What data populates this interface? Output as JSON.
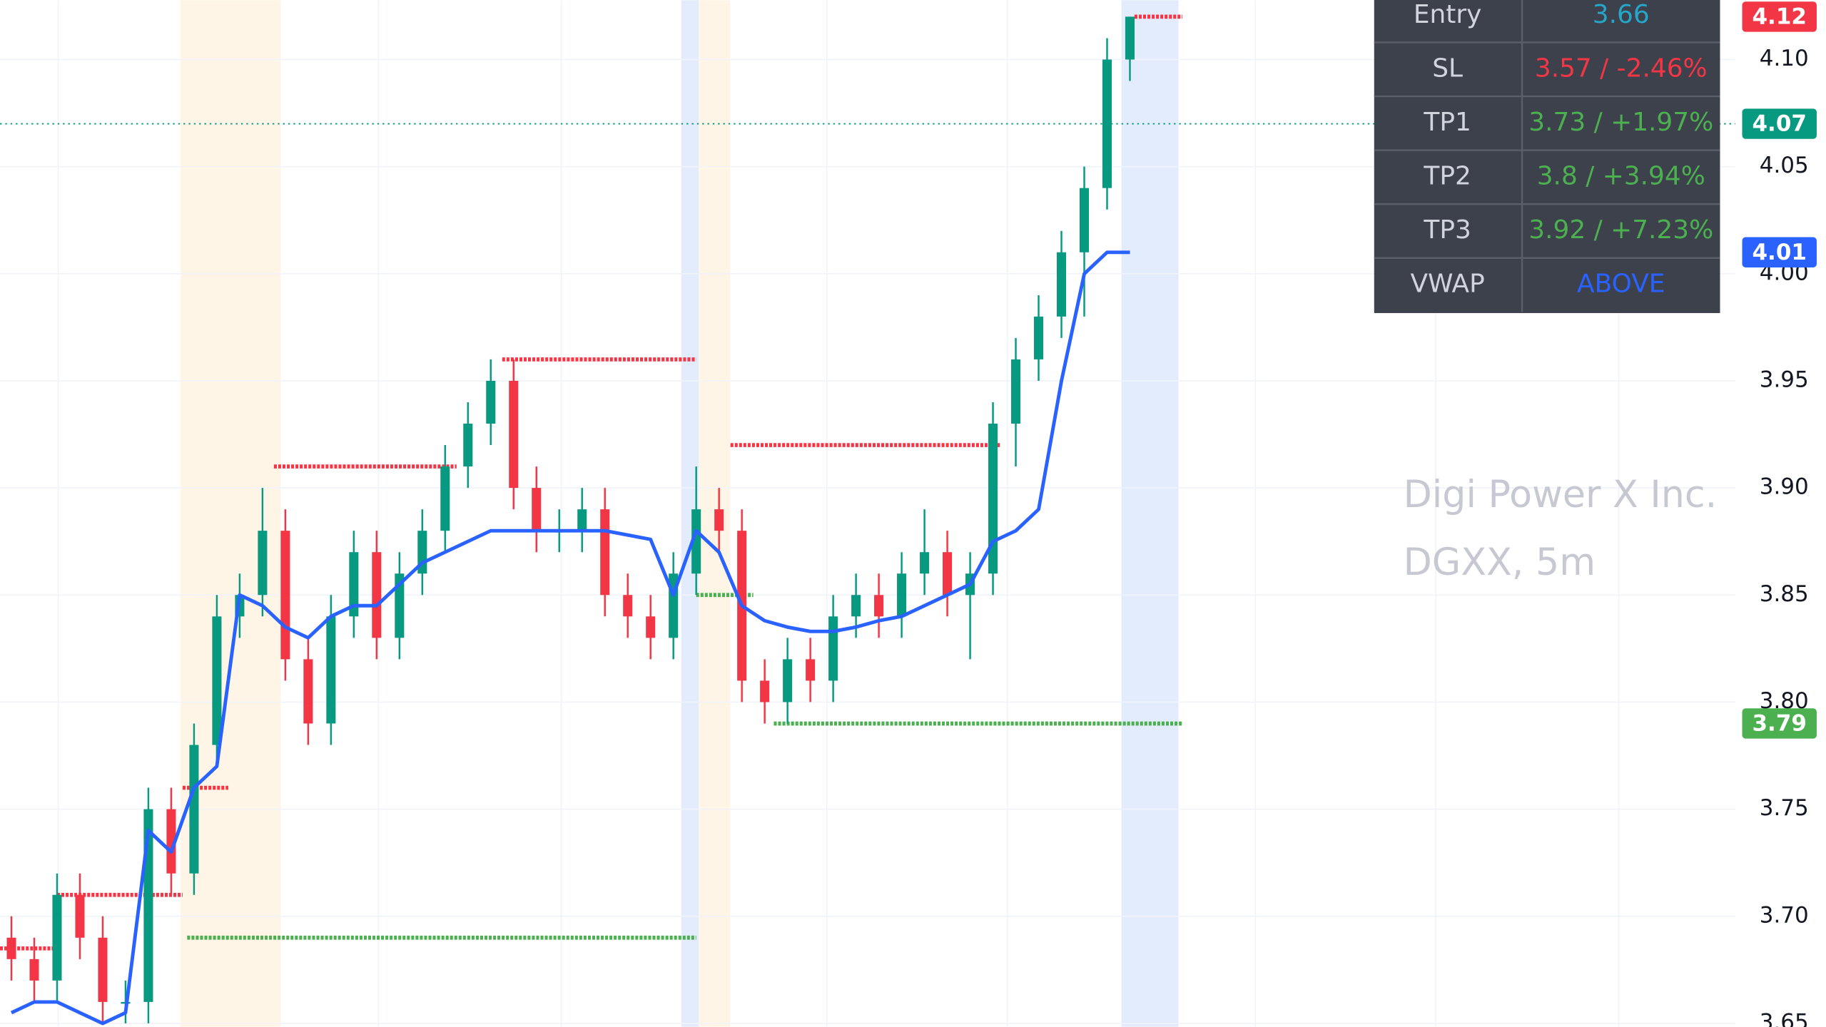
{
  "chart_data": {
    "type": "candlestick",
    "up_color": "#089981",
    "down_color": "#f23645",
    "ylim": [
      3.6484,
      4.1277
    ],
    "xlim": [
      -0.5,
      59.7
    ],
    "yticks": [
      {
        "value": 3.65,
        "label": "3.65"
      },
      {
        "value": 3.7,
        "label": "3.70"
      },
      {
        "value": 3.75,
        "label": "3.75"
      },
      {
        "value": 3.8,
        "label": "3.80"
      },
      {
        "value": 3.85,
        "label": "3.85"
      },
      {
        "value": 3.9,
        "label": "3.90"
      },
      {
        "value": 3.95,
        "label": "3.95"
      },
      {
        "value": 4.0,
        "label": "4.00"
      },
      {
        "value": 4.05,
        "label": "4.05"
      },
      {
        "value": 4.1,
        "label": "4.10"
      }
    ],
    "grid": true,
    "x": [
      0,
      1,
      2,
      3,
      4,
      5,
      6,
      7,
      8,
      9,
      10,
      11,
      12,
      13,
      14,
      15,
      16,
      17,
      18,
      19,
      20,
      21,
      22,
      23,
      24,
      25,
      26,
      27,
      28,
      29,
      30,
      31,
      32,
      33,
      34,
      35,
      36,
      37,
      38,
      39,
      40,
      41,
      42,
      43,
      44,
      45,
      46,
      47,
      48,
      49
    ],
    "open": [
      3.69,
      3.68,
      3.67,
      3.71,
      3.69,
      3.66,
      3.66,
      3.75,
      3.72,
      3.78,
      3.84,
      3.85,
      3.88,
      3.82,
      3.79,
      3.84,
      3.87,
      3.83,
      3.86,
      3.88,
      3.91,
      3.93,
      3.95,
      3.9,
      3.88,
      3.88,
      3.89,
      3.85,
      3.84,
      3.83,
      3.86,
      3.89,
      3.88,
      3.81,
      3.8,
      3.82,
      3.81,
      3.84,
      3.85,
      3.84,
      3.86,
      3.87,
      3.85,
      3.86,
      3.93,
      3.96,
      3.98,
      4.01,
      4.04,
      4.1
    ],
    "high": [
      3.7,
      3.69,
      3.72,
      3.72,
      3.7,
      3.67,
      3.76,
      3.76,
      3.79,
      3.85,
      3.86,
      3.9,
      3.89,
      3.83,
      3.85,
      3.88,
      3.88,
      3.87,
      3.89,
      3.92,
      3.94,
      3.96,
      3.96,
      3.91,
      3.89,
      3.9,
      3.9,
      3.86,
      3.85,
      3.87,
      3.91,
      3.9,
      3.89,
      3.82,
      3.83,
      3.83,
      3.85,
      3.86,
      3.86,
      3.87,
      3.89,
      3.88,
      3.87,
      3.94,
      3.97,
      3.99,
      4.02,
      4.05,
      4.11,
      4.12
    ],
    "low": [
      3.67,
      3.66,
      3.66,
      3.68,
      3.65,
      3.65,
      3.65,
      3.71,
      3.71,
      3.77,
      3.83,
      3.84,
      3.81,
      3.78,
      3.78,
      3.83,
      3.82,
      3.82,
      3.85,
      3.87,
      3.9,
      3.92,
      3.89,
      3.87,
      3.87,
      3.87,
      3.84,
      3.83,
      3.82,
      3.82,
      3.85,
      3.87,
      3.8,
      3.79,
      3.79,
      3.8,
      3.8,
      3.83,
      3.83,
      3.83,
      3.85,
      3.84,
      3.82,
      3.85,
      3.91,
      3.95,
      3.97,
      3.98,
      4.03,
      4.09
    ],
    "close": [
      3.68,
      3.67,
      3.71,
      3.69,
      3.66,
      3.66,
      3.75,
      3.72,
      3.78,
      3.84,
      3.85,
      3.88,
      3.82,
      3.79,
      3.84,
      3.87,
      3.83,
      3.86,
      3.88,
      3.91,
      3.93,
      3.95,
      3.9,
      3.88,
      3.88,
      3.89,
      3.85,
      3.84,
      3.83,
      3.86,
      3.89,
      3.88,
      3.81,
      3.8,
      3.82,
      3.81,
      3.84,
      3.85,
      3.84,
      3.86,
      3.87,
      3.85,
      3.86,
      3.93,
      3.96,
      3.98,
      4.01,
      4.04,
      4.1,
      4.12
    ],
    "vwap": {
      "color": "#2962ff",
      "values": [
        3.655,
        3.66,
        3.66,
        3.655,
        3.65,
        3.655,
        3.74,
        3.73,
        3.76,
        3.77,
        3.85,
        3.845,
        3.835,
        3.83,
        3.84,
        3.845,
        3.845,
        3.855,
        3.865,
        3.87,
        3.875,
        3.88,
        3.88,
        3.88,
        3.88,
        3.88,
        3.88,
        3.878,
        3.876,
        3.85,
        3.88,
        3.87,
        3.845,
        3.838,
        3.835,
        3.833,
        3.833,
        3.835,
        3.838,
        3.84,
        3.845,
        3.85,
        3.855,
        3.875,
        3.88,
        3.89,
        3.95,
        4.0,
        4.01,
        4.01
      ]
    },
    "levels": [
      {
        "value": 3.685,
        "from": -0.5,
        "to": 2,
        "color": "#f23645"
      },
      {
        "value": 3.71,
        "from": 2,
        "to": 7.5,
        "color": "#f23645"
      },
      {
        "value": 3.76,
        "from": 7.5,
        "to": 9.5,
        "color": "#f23645"
      },
      {
        "value": 3.91,
        "from": 11.5,
        "to": 19.5,
        "color": "#f23645"
      },
      {
        "value": 3.96,
        "from": 21.5,
        "to": 30,
        "color": "#f23645"
      },
      {
        "value": 3.92,
        "from": 31.5,
        "to": 43.3,
        "color": "#f23645"
      },
      {
        "value": 4.12,
        "from": 49.2,
        "to": 51.3,
        "color": "#f23645"
      },
      {
        "value": 3.69,
        "from": 7.7,
        "to": 30,
        "color": "#4caf50"
      },
      {
        "value": 3.85,
        "from": 30,
        "to": 32.5,
        "color": "#4caf50"
      },
      {
        "value": 3.79,
        "from": 33.4,
        "to": 51.3,
        "color": "#4caf50"
      }
    ],
    "price_line": {
      "value": 4.07,
      "color": "#089981"
    },
    "price_tags": [
      {
        "value": 4.12,
        "color": "#f23645"
      },
      {
        "value": 4.07,
        "color": "#089981"
      },
      {
        "value": 4.01,
        "color": "#2962ff"
      },
      {
        "value": 3.79,
        "color": "#4caf50"
      }
    ],
    "watermark": [
      "Digi Power X Inc.",
      "DGXX, 5m"
    ]
  },
  "table": {
    "rows": [
      [
        "Entry",
        "3.66"
      ],
      [
        "SL",
        "3.57 / -2.46%"
      ],
      [
        "TP1",
        "3.73 / +1.97%"
      ],
      [
        "TP2",
        "3.8 / +3.94%"
      ],
      [
        "TP3",
        "3.92 / +7.23%"
      ],
      [
        "VWAP",
        "ABOVE"
      ]
    ]
  }
}
